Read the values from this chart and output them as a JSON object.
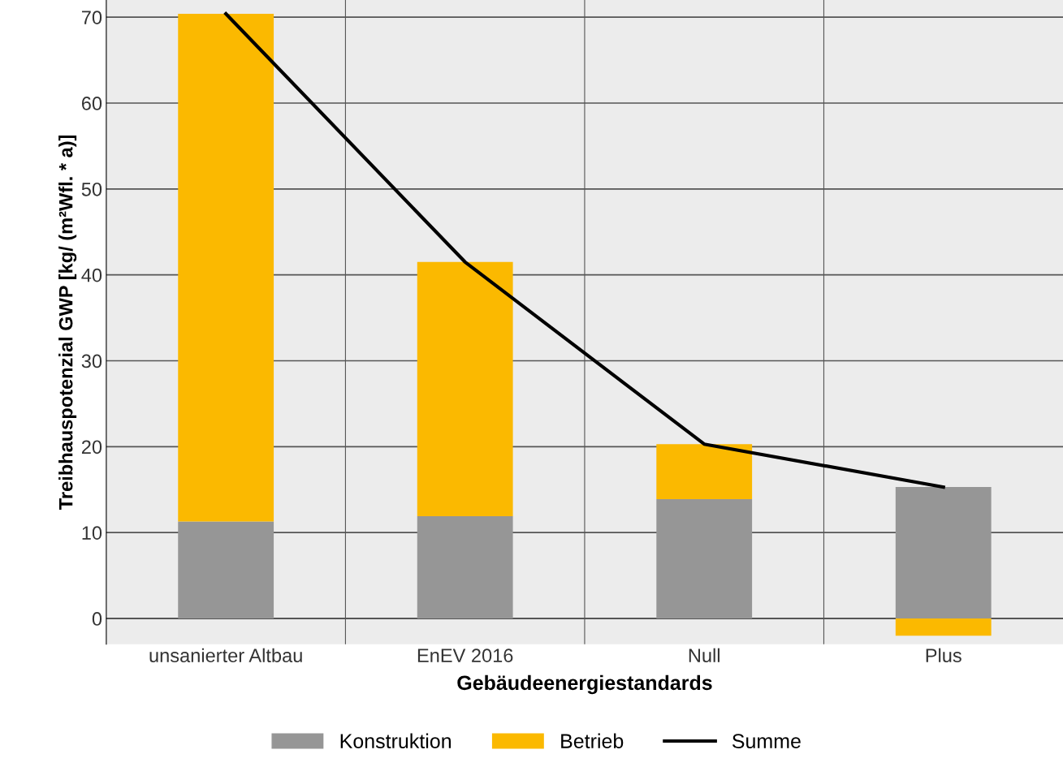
{
  "chart_data": {
    "type": "bar",
    "stacked": true,
    "xlabel": "Gebäudeenergiestandards",
    "ylabel": "Treibhauspotenzial GWP [kg/ (m²Wfl. * a)]",
    "categories": [
      "unsanierter Altbau",
      "EnEV 2016",
      "Null",
      "Plus"
    ],
    "series": [
      {
        "name": "Konstruktion",
        "color": "#969696",
        "values": [
          11.3,
          11.9,
          13.9,
          15.3
        ]
      },
      {
        "name": "Betrieb",
        "color": "#fbb900",
        "values": [
          59.1,
          29.6,
          6.4,
          -2.0
        ]
      },
      {
        "name": "Summe",
        "type": "line",
        "color": "#000000",
        "values": [
          70.4,
          41.5,
          20.3,
          15.3
        ]
      }
    ],
    "ylim": [
      -3,
      72
    ],
    "yticks": [
      0,
      10,
      20,
      30,
      40,
      50,
      60,
      70
    ],
    "grid": true,
    "legend": "bottom",
    "marker": "none",
    "line_style": "solid"
  }
}
